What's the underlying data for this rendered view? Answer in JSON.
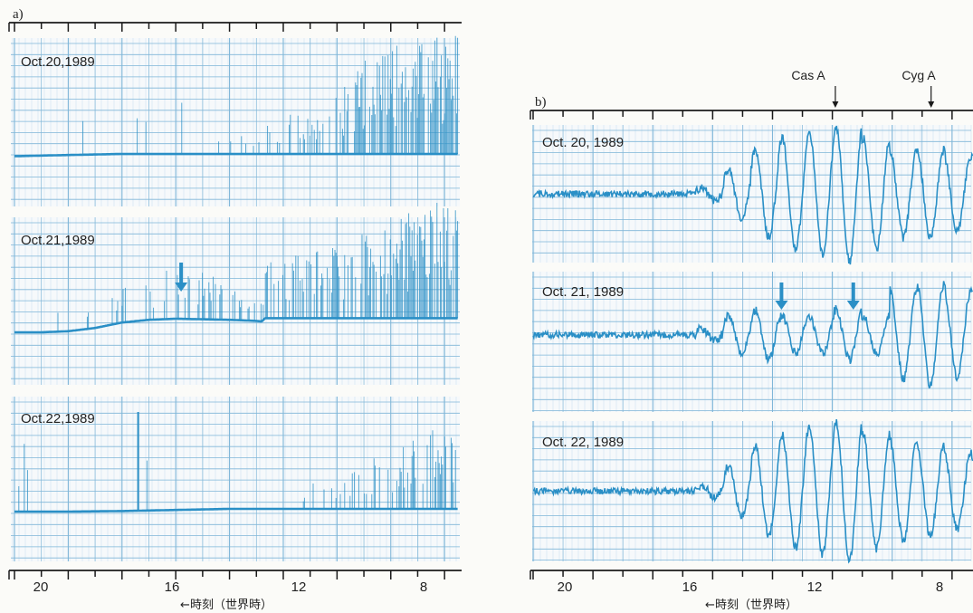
{
  "colors": {
    "trace": "#2a8fc6",
    "grid": "#9fc9e3",
    "grid_major": "#7fb6d8",
    "paper": "#f6f9fb",
    "axis": "#1a1a1a"
  },
  "chart_data": [
    {
      "type": "line",
      "panel_label": "a)",
      "xlabel": "←時刻（世界時）",
      "x_direction": "reversed",
      "xlim": [
        22,
        5.5
      ],
      "ticks": [
        "20",
        "16",
        "12",
        "8"
      ],
      "tick_values": [
        20,
        16,
        12,
        8
      ],
      "grid": true,
      "series": [
        {
          "name": "Oct.20,1989",
          "annotations": [],
          "values": [
            0.06,
            0.07,
            0.08,
            0.09,
            0.1,
            0.11,
            0.12,
            0.13,
            0.15,
            0.17,
            0.2,
            0.22,
            0.27,
            0.33,
            0.35,
            0.45,
            0.5,
            0.6,
            0.72,
            0.8,
            0.85,
            0.9,
            0.95
          ],
          "x": [
            21.8,
            21,
            20,
            19,
            18,
            17,
            16,
            15,
            14.5,
            14,
            13,
            12.5,
            12,
            11.5,
            11,
            10.5,
            10,
            9.5,
            9,
            8.5,
            7.5,
            6.5,
            5.6
          ]
        },
        {
          "name": "Oct.21,1989",
          "annotations": [
            15.8
          ],
          "values": [
            0.1,
            0.1,
            0.12,
            0.18,
            0.28,
            0.33,
            0.35,
            0.34,
            0.33,
            0.31,
            0.3,
            0.45,
            0.5,
            0.5,
            0.55,
            0.6,
            0.65,
            0.7,
            0.8,
            0.9,
            0.85
          ],
          "x": [
            21.8,
            21,
            20,
            19,
            18,
            17,
            16,
            15,
            14,
            13,
            12.8,
            12.5,
            12,
            11,
            10,
            9.5,
            9,
            8.5,
            7.5,
            6.5,
            5.6
          ]
        },
        {
          "name": "Oct.22,1989",
          "annotations": [],
          "values": [
            0.05,
            0.05,
            0.06,
            0.07,
            0.08,
            0.1,
            0.12,
            0.15,
            0.2,
            0.25,
            0.35,
            0.5,
            0.6,
            0.65
          ],
          "x": [
            21.8,
            20,
            18,
            17,
            16,
            14,
            13,
            12,
            11,
            10,
            9,
            8,
            7,
            5.6
          ]
        }
      ]
    },
    {
      "type": "line",
      "panel_label": "b)",
      "xlabel": "←時刻（世界時）",
      "x_direction": "reversed",
      "xlim": [
        22,
        7.3
      ],
      "ticks": [
        "20",
        "16",
        "12",
        "8"
      ],
      "tick_values": [
        20,
        16,
        12,
        8
      ],
      "sources": [
        {
          "name": "Cas A",
          "x": 11.9
        },
        {
          "name": "Cyg A",
          "x": 8.7
        }
      ],
      "grid": true,
      "series": [
        {
          "name": "Oct. 20, 1989",
          "annotations": [],
          "oscillation_start": 16.6,
          "oscillation_period_h": 0.9,
          "baseline": 0.5,
          "amplitude": [
            0.05,
            0.2,
            0.35,
            0.45,
            0.5,
            0.55,
            0.45,
            0.35,
            0.35,
            0.3
          ]
        },
        {
          "name": "Oct. 21, 1989",
          "annotations": [
            13.7,
            11.3
          ],
          "oscillation_start": 16.6,
          "oscillation_period_h": 0.9,
          "baseline": 0.45,
          "amplitude": [
            0.05,
            0.15,
            0.2,
            0.15,
            0.15,
            0.2,
            0.15,
            0.35,
            0.4,
            0.35
          ]
        },
        {
          "name": "Oct. 22, 1989",
          "annotations": [],
          "oscillation_start": 16.6,
          "oscillation_period_h": 0.9,
          "baseline": 0.5,
          "amplitude": [
            0.05,
            0.2,
            0.35,
            0.45,
            0.5,
            0.55,
            0.45,
            0.4,
            0.35,
            0.3
          ]
        }
      ]
    }
  ]
}
